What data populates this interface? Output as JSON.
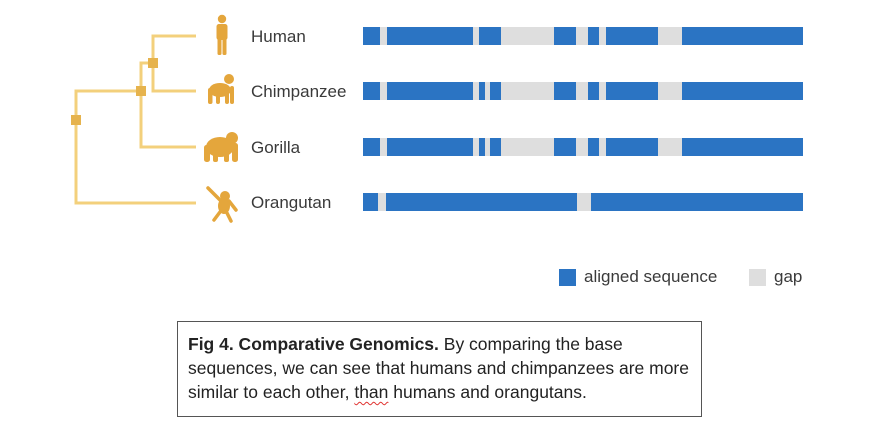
{
  "colors": {
    "tree": "#f3d07c",
    "node": "#e6b34d",
    "icon": "#e4a63c",
    "aligned": "#2b74c3",
    "gap": "#dedede"
  },
  "species": [
    {
      "name": "Human",
      "icon": "human-icon",
      "aligned_fraction": 0.788
    },
    {
      "name": "Chimpanzee",
      "icon": "chimpanzee-icon",
      "aligned_fraction": 0.788
    },
    {
      "name": "Gorilla",
      "icon": "gorilla-icon",
      "aligned_fraction": 0.788
    },
    {
      "name": "Orangutan",
      "icon": "orangutan-icon",
      "aligned_fraction": 0.93
    }
  ],
  "legend": {
    "aligned": "aligned sequence",
    "gap": "gap"
  },
  "caption": {
    "title": "Fig 4. Comparative Genomics.",
    "text_before": " By comparing the base sequences, we can see that humans and chimpanzees are more similar to each other, ",
    "flagged_word": "than",
    "text_after": " humans and orangutans."
  }
}
